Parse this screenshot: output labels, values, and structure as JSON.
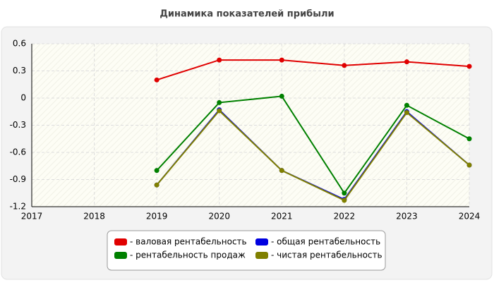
{
  "chart_data": {
    "type": "line",
    "title": "Динамика показателей прибыли",
    "x": [
      2017,
      2018,
      2019,
      2020,
      2021,
      2022,
      2023,
      2024
    ],
    "xlim": [
      2017,
      2024
    ],
    "xticks": [
      2017,
      2018,
      2019,
      2020,
      2021,
      2022,
      2023,
      2024
    ],
    "ylim": [
      -1.2,
      0.6
    ],
    "yticks": [
      -1.2,
      -0.9,
      -0.6,
      -0.3,
      0,
      0.3,
      0.6
    ],
    "grid": true,
    "series": [
      {
        "name": "- валовая рентабельность",
        "color": "#e00000",
        "values": [
          null,
          null,
          0.2,
          0.42,
          0.42,
          0.36,
          0.4,
          0.35
        ]
      },
      {
        "name": "- общая рентабельность",
        "color": "#0000e0",
        "values": [
          null,
          null,
          -0.96,
          -0.13,
          -0.8,
          -1.12,
          -0.15,
          -0.74
        ]
      },
      {
        "name": "- рентабельность продаж",
        "color": "#008000",
        "values": [
          null,
          null,
          -0.8,
          -0.05,
          0.02,
          -1.05,
          -0.08,
          -0.45
        ]
      },
      {
        "name": "- чистая рентабельность",
        "color": "#808000",
        "values": [
          null,
          null,
          -0.96,
          -0.14,
          -0.8,
          -1.13,
          -0.16,
          -0.74
        ]
      }
    ]
  }
}
